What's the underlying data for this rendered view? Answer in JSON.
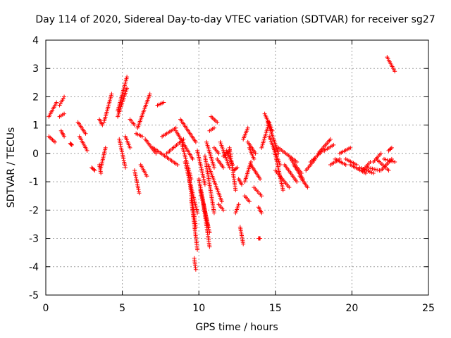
{
  "chart_data": {
    "type": "scatter",
    "title": "Day 114 of 2020, Sidereal Day-to-day VTEC variation (SDTVAR) for receiver sg27",
    "xlabel": "GPS time / hours",
    "ylabel": "SDTVAR / TECUs",
    "xlim": [
      0,
      25
    ],
    "ylim": [
      -5,
      4
    ],
    "xticks": [
      0,
      5,
      10,
      15,
      20,
      25
    ],
    "yticks": [
      -5,
      -4,
      -3,
      -2,
      -1,
      0,
      1,
      2,
      3,
      4
    ],
    "grid": true,
    "marker": "plus",
    "color": "#ff0000",
    "series": [
      {
        "name": "sg27",
        "segments": [
          {
            "x": [
              0.2,
              0.7
            ],
            "y": [
              1.3,
              1.8
            ]
          },
          {
            "x": [
              0.2,
              0.6
            ],
            "y": [
              0.6,
              0.4
            ]
          },
          {
            "x": [
              0.9,
              1.2
            ],
            "y": [
              1.7,
              2.0
            ]
          },
          {
            "x": [
              0.9,
              1.2
            ],
            "y": [
              1.3,
              1.4
            ]
          },
          {
            "x": [
              1.0,
              1.2
            ],
            "y": [
              0.8,
              0.6
            ]
          },
          {
            "x": [
              1.6,
              1.7
            ],
            "y": [
              0.35,
              0.3
            ]
          },
          {
            "x": [
              2.1,
              2.6
            ],
            "y": [
              1.1,
              0.7
            ]
          },
          {
            "x": [
              2.2,
              2.7
            ],
            "y": [
              0.6,
              0.1
            ]
          },
          {
            "x": [
              3.0,
              3.2
            ],
            "y": [
              -0.5,
              -0.6
            ]
          },
          {
            "x": [
              3.5,
              3.6
            ],
            "y": [
              -0.4,
              -0.7
            ]
          },
          {
            "x": [
              3.5,
              3.7
            ],
            "y": [
              1.2,
              1.0
            ]
          },
          {
            "x": [
              3.6,
              3.9
            ],
            "y": [
              -0.5,
              0.2
            ]
          },
          {
            "x": [
              3.8,
              4.3
            ],
            "y": [
              1.1,
              2.1
            ]
          },
          {
            "x": [
              4.7,
              5.3
            ],
            "y": [
              1.5,
              2.7
            ]
          },
          {
            "x": [
              4.7,
              5.3
            ],
            "y": [
              1.3,
              2.3
            ]
          },
          {
            "x": [
              4.8,
              5.2
            ],
            "y": [
              0.5,
              -0.5
            ]
          },
          {
            "x": [
              5.2,
              5.5
            ],
            "y": [
              0.6,
              0.2
            ]
          },
          {
            "x": [
              5.5,
              5.8
            ],
            "y": [
              1.2,
              1.0
            ]
          },
          {
            "x": [
              5.8,
              6.1
            ],
            "y": [
              -0.6,
              -1.4
            ]
          },
          {
            "x": [
              5.9,
              6.3
            ],
            "y": [
              0.7,
              0.6
            ]
          },
          {
            "x": [
              6.0,
              6.8
            ],
            "y": [
              0.9,
              2.1
            ]
          },
          {
            "x": [
              6.2,
              6.6
            ],
            "y": [
              -0.4,
              -0.8
            ]
          },
          {
            "x": [
              6.5,
              7.2
            ],
            "y": [
              0.5,
              0.0
            ]
          },
          {
            "x": [
              7.3,
              7.7
            ],
            "y": [
              1.7,
              1.8
            ]
          },
          {
            "x": [
              7.0,
              8.6
            ],
            "y": [
              0.2,
              -0.4
            ]
          },
          {
            "x": [
              7.6,
              8.5
            ],
            "y": [
              0.6,
              0.9
            ]
          },
          {
            "x": [
              7.9,
              9.0
            ],
            "y": [
              0.0,
              0.5
            ]
          },
          {
            "x": [
              8.5,
              9.6
            ],
            "y": [
              0.8,
              -0.2
            ]
          },
          {
            "x": [
              8.8,
              9.8
            ],
            "y": [
              1.2,
              0.4
            ]
          },
          {
            "x": [
              8.9,
              9.5
            ],
            "y": [
              0.3,
              -0.9
            ]
          },
          {
            "x": [
              9.1,
              9.9
            ],
            "y": [
              -0.3,
              -2.1
            ]
          },
          {
            "x": [
              9.3,
              9.8
            ],
            "y": [
              -0.6,
              -2.6
            ]
          },
          {
            "x": [
              9.5,
              9.9
            ],
            "y": [
              -1.6,
              -3.4
            ]
          },
          {
            "x": [
              9.7,
              9.8
            ],
            "y": [
              -3.7,
              -4.1
            ]
          },
          {
            "x": [
              9.9,
              10.4
            ],
            "y": [
              0.1,
              -1.1
            ]
          },
          {
            "x": [
              10.0,
              10.6
            ],
            "y": [
              -0.9,
              -2.6
            ]
          },
          {
            "x": [
              10.1,
              10.7
            ],
            "y": [
              -1.3,
              -2.8
            ]
          },
          {
            "x": [
              10.3,
              10.7
            ],
            "y": [
              -1.8,
              -3.3
            ]
          },
          {
            "x": [
              10.4,
              11.0
            ],
            "y": [
              -0.1,
              -2.1
            ]
          },
          {
            "x": [
              10.5,
              11.0
            ],
            "y": [
              0.4,
              -0.5
            ]
          },
          {
            "x": [
              10.6,
              11.5
            ],
            "y": [
              -0.4,
              -1.7
            ]
          },
          {
            "x": [
              10.7,
              11.0
            ],
            "y": [
              0.8,
              0.9
            ]
          },
          {
            "x": [
              10.8,
              11.2
            ],
            "y": [
              1.3,
              1.1
            ]
          },
          {
            "x": [
              11.0,
              11.3
            ],
            "y": [
              0.2,
              0.0
            ]
          },
          {
            "x": [
              11.2,
              11.6
            ],
            "y": [
              -0.2,
              -0.5
            ]
          },
          {
            "x": [
              11.3,
              11.6
            ],
            "y": [
              -1.8,
              -2.0
            ]
          },
          {
            "x": [
              11.4,
              12.0
            ],
            "y": [
              0.4,
              -0.5
            ]
          },
          {
            "x": [
              11.6,
              12.0
            ],
            "y": [
              -0.1,
              0.1
            ]
          },
          {
            "x": [
              11.8,
              12.2
            ],
            "y": [
              0.1,
              -0.4
            ]
          },
          {
            "x": [
              12.0,
              12.4
            ],
            "y": [
              0.2,
              -1.3
            ]
          },
          {
            "x": [
              12.3,
              12.5
            ],
            "y": [
              -0.6,
              -0.5
            ]
          },
          {
            "x": [
              12.6,
              12.8
            ],
            "y": [
              -0.9,
              -1.1
            ]
          },
          {
            "x": [
              12.4,
              12.6
            ],
            "y": [
              -2.1,
              -1.8
            ]
          },
          {
            "x": [
              12.7,
              12.9
            ],
            "y": [
              -2.6,
              -3.2
            ]
          },
          {
            "x": [
              12.9,
              13.2
            ],
            "y": [
              0.5,
              0.9
            ]
          },
          {
            "x": [
              13.0,
              13.4
            ],
            "y": [
              -1.0,
              -0.3
            ]
          },
          {
            "x": [
              13.0,
              13.3
            ],
            "y": [
              -1.5,
              -1.7
            ]
          },
          {
            "x": [
              13.2,
              13.7
            ],
            "y": [
              0.4,
              0.0
            ]
          },
          {
            "x": [
              13.3,
              13.6
            ],
            "y": [
              0.2,
              -0.2
            ]
          },
          {
            "x": [
              13.4,
              14.0
            ],
            "y": [
              -0.4,
              -0.9
            ]
          },
          {
            "x": [
              13.6,
              14.1
            ],
            "y": [
              -1.2,
              -1.5
            ]
          },
          {
            "x": [
              13.9,
              14.1
            ],
            "y": [
              -1.9,
              -2.1
            ]
          },
          {
            "x": [
              13.9,
              14.0
            ],
            "y": [
              -3.0,
              -3.0
            ]
          },
          {
            "x": [
              14.1,
              14.6
            ],
            "y": [
              0.2,
              1.1
            ]
          },
          {
            "x": [
              14.3,
              14.8
            ],
            "y": [
              1.4,
              0.8
            ]
          },
          {
            "x": [
              14.5,
              15.2
            ],
            "y": [
              1.1,
              0.0
            ]
          },
          {
            "x": [
              14.6,
              15.3
            ],
            "y": [
              0.6,
              -0.4
            ]
          },
          {
            "x": [
              14.9,
              15.5
            ],
            "y": [
              0.2,
              -1.3
            ]
          },
          {
            "x": [
              15.0,
              15.9
            ],
            "y": [
              -0.6,
              -1.2
            ]
          },
          {
            "x": [
              15.2,
              16.4
            ],
            "y": [
              0.2,
              -0.3
            ]
          },
          {
            "x": [
              15.6,
              16.4
            ],
            "y": [
              -0.4,
              -1.0
            ]
          },
          {
            "x": [
              16.0,
              16.7
            ],
            "y": [
              -0.2,
              -0.7
            ]
          },
          {
            "x": [
              16.2,
              16.8
            ],
            "y": [
              -0.4,
              -0.9
            ]
          },
          {
            "x": [
              16.6,
              17.1
            ],
            "y": [
              -0.8,
              -1.2
            ]
          },
          {
            "x": [
              17.0,
              17.6
            ],
            "y": [
              -0.6,
              -0.2
            ]
          },
          {
            "x": [
              17.3,
              18.1
            ],
            "y": [
              -0.3,
              0.1
            ]
          },
          {
            "x": [
              17.8,
              18.6
            ],
            "y": [
              0.0,
              0.5
            ]
          },
          {
            "x": [
              18.2,
              18.8
            ],
            "y": [
              0.1,
              0.3
            ]
          },
          {
            "x": [
              18.6,
              19.2
            ],
            "y": [
              -0.4,
              -0.2
            ]
          },
          {
            "x": [
              18.9,
              19.6
            ],
            "y": [
              -0.2,
              -0.4
            ]
          },
          {
            "x": [
              19.2,
              19.9
            ],
            "y": [
              0.0,
              0.2
            ]
          },
          {
            "x": [
              19.6,
              20.3
            ],
            "y": [
              -0.2,
              -0.4
            ]
          },
          {
            "x": [
              19.9,
              20.9
            ],
            "y": [
              -0.4,
              -0.7
            ]
          },
          {
            "x": [
              20.5,
              21.4
            ],
            "y": [
              -0.5,
              -0.7
            ]
          },
          {
            "x": [
              20.7,
              21.2
            ],
            "y": [
              -0.6,
              -0.3
            ]
          },
          {
            "x": [
              21.0,
              21.8
            ],
            "y": [
              -0.5,
              -0.6
            ]
          },
          {
            "x": [
              21.4,
              21.9
            ],
            "y": [
              -0.3,
              0.0
            ]
          },
          {
            "x": [
              21.6,
              22.4
            ],
            "y": [
              -0.2,
              -0.6
            ]
          },
          {
            "x": [
              21.9,
              22.6
            ],
            "y": [
              -0.6,
              -0.2
            ]
          },
          {
            "x": [
              22.1,
              22.8
            ],
            "y": [
              -0.2,
              -0.3
            ]
          },
          {
            "x": [
              22.4,
              22.6
            ],
            "y": [
              0.1,
              0.2
            ]
          },
          {
            "x": [
              22.3,
              22.8
            ],
            "y": [
              3.4,
              2.9
            ]
          }
        ]
      }
    ]
  }
}
